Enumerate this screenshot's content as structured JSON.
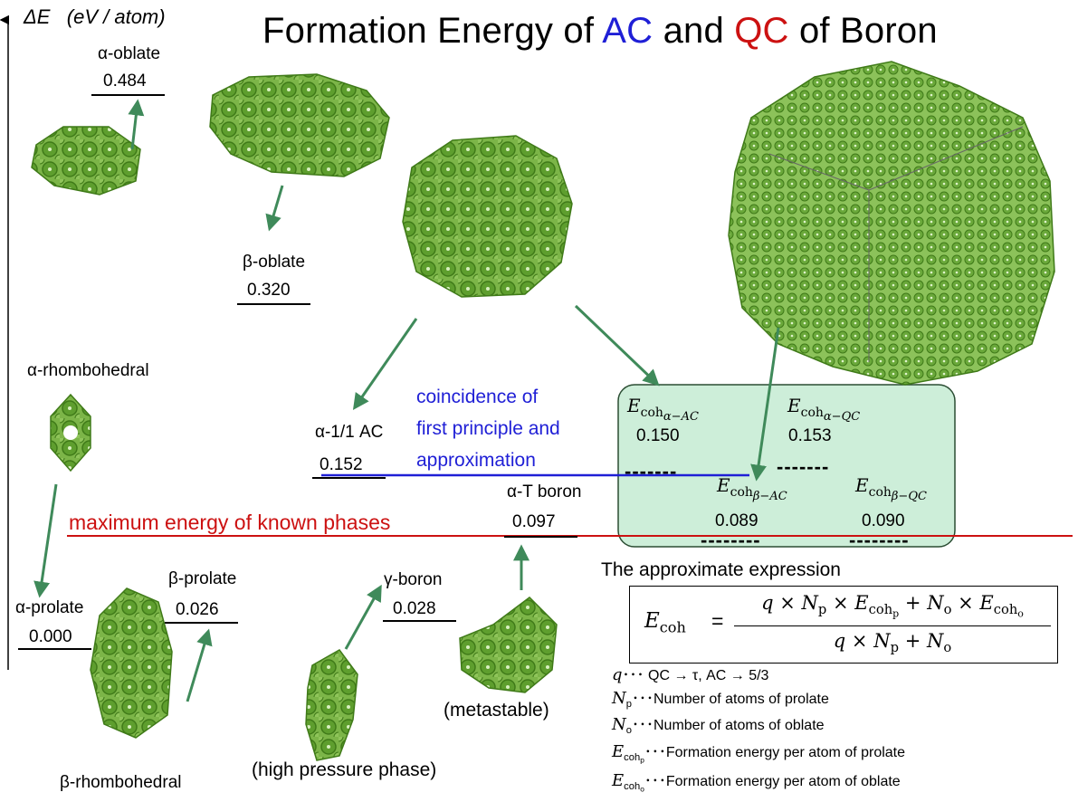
{
  "title": {
    "prefix": "Formation Energy of ",
    "ac": "AC",
    "mid": " and ",
    "qc": "QC",
    "suffix": " of Boron"
  },
  "axis": {
    "label": "ΔE",
    "unit": "(eV / atom)"
  },
  "colors": {
    "structure": "#5e9e2e",
    "structure_dark": "#3f7a18",
    "arrow": "#3f8a5a",
    "blue": "#1f1fd6",
    "red": "#cc1111",
    "box_fill": "#cdeed9",
    "box_border": "#2b4d33"
  },
  "phases": {
    "alpha_oblate": {
      "name": "α-oblate",
      "value": "0.484"
    },
    "beta_oblate": {
      "name": "β-oblate",
      "value": "0.320"
    },
    "alpha_rhombohedral": {
      "name": "α-rhombohedral"
    },
    "alpha_11_ac": {
      "name": "α-1/1 AC",
      "value": "0.152"
    },
    "alpha_t_boron": {
      "name": "α-T boron",
      "value": "0.097"
    },
    "alpha_prolate": {
      "name": "α-prolate",
      "value": "0.000"
    },
    "beta_prolate": {
      "name": "β-prolate",
      "value": "0.026"
    },
    "gamma_boron": {
      "name": "γ-boron",
      "value": "0.028"
    },
    "beta_rhombohedral": {
      "name": "β-rhombohedral"
    }
  },
  "notes": {
    "coincidence": [
      "coincidence of",
      "first principle and",
      "approximation"
    ],
    "max_energy": "maximum energy of known phases",
    "high_pressure": "(high pressure phase)",
    "metastable": "(metastable)"
  },
  "box": {
    "e_alpha_ac": "0.150",
    "e_alpha_qc": "0.153",
    "e_beta_ac": "0.089",
    "e_beta_qc": "0.090",
    "dashes": "-------",
    "dashes_long": "--------"
  },
  "formula": {
    "heading": "The approximate expression",
    "lhs": "E",
    "coh": "coh",
    "equals": "=",
    "q": "q",
    "times": "×",
    "plus": "+",
    "N": "N",
    "p": "p",
    "o": "o"
  },
  "legend": {
    "q": {
      "sym": "q",
      "dots": "･･･",
      "text": " QC → τ, AC → 5/3"
    },
    "np": {
      "sym": "N",
      "sub": "p",
      "dots": "･･･",
      "text": "Number of atoms of prolate"
    },
    "no": {
      "sym": "N",
      "sub": "o",
      "dots": "･･･",
      "text": "Number of atoms  of oblate"
    },
    "ep": {
      "sym": "E",
      "sub": "coh",
      "subsub": "p",
      "dots": "･･･",
      "text": "Formation energy per atom of prolate"
    },
    "eo": {
      "sym": "E",
      "sub": "coh",
      "subsub": "o",
      "dots": "･･･",
      "text": "Formation energy per atom of oblate"
    }
  }
}
